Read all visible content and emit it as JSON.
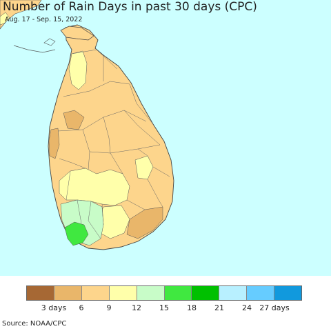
{
  "title": "Number of Rain Days in past 30 days (CPC)",
  "subtitle": "Aug. 17 - Sep. 15, 2022",
  "source": "Source: NOAA/CPC",
  "colors": {
    "ocean": "#ccffff",
    "land_3_6": "#e9b66a",
    "land_6_9": "#fdd58c",
    "land_9_12": "#ffffaa",
    "land_12_15": "#c8fcc8",
    "land_15_18": "#40e840",
    "border": "#555555"
  },
  "legend": {
    "colors": [
      "#a66834",
      "#e9b66a",
      "#fdd58c",
      "#ffffaa",
      "#c8fcc8",
      "#40e840",
      "#00c000",
      "#b8f0ff",
      "#66ccff",
      "#1199dd"
    ],
    "tick_labels": [
      {
        "text": "3 days",
        "pos": 1
      },
      {
        "text": "6",
        "pos": 2
      },
      {
        "text": "9",
        "pos": 3
      },
      {
        "text": "12",
        "pos": 4
      },
      {
        "text": "15",
        "pos": 5
      },
      {
        "text": "18",
        "pos": 6
      },
      {
        "text": "21",
        "pos": 7
      },
      {
        "text": "24",
        "pos": 8
      },
      {
        "text": "27 days",
        "pos": 9
      }
    ]
  }
}
